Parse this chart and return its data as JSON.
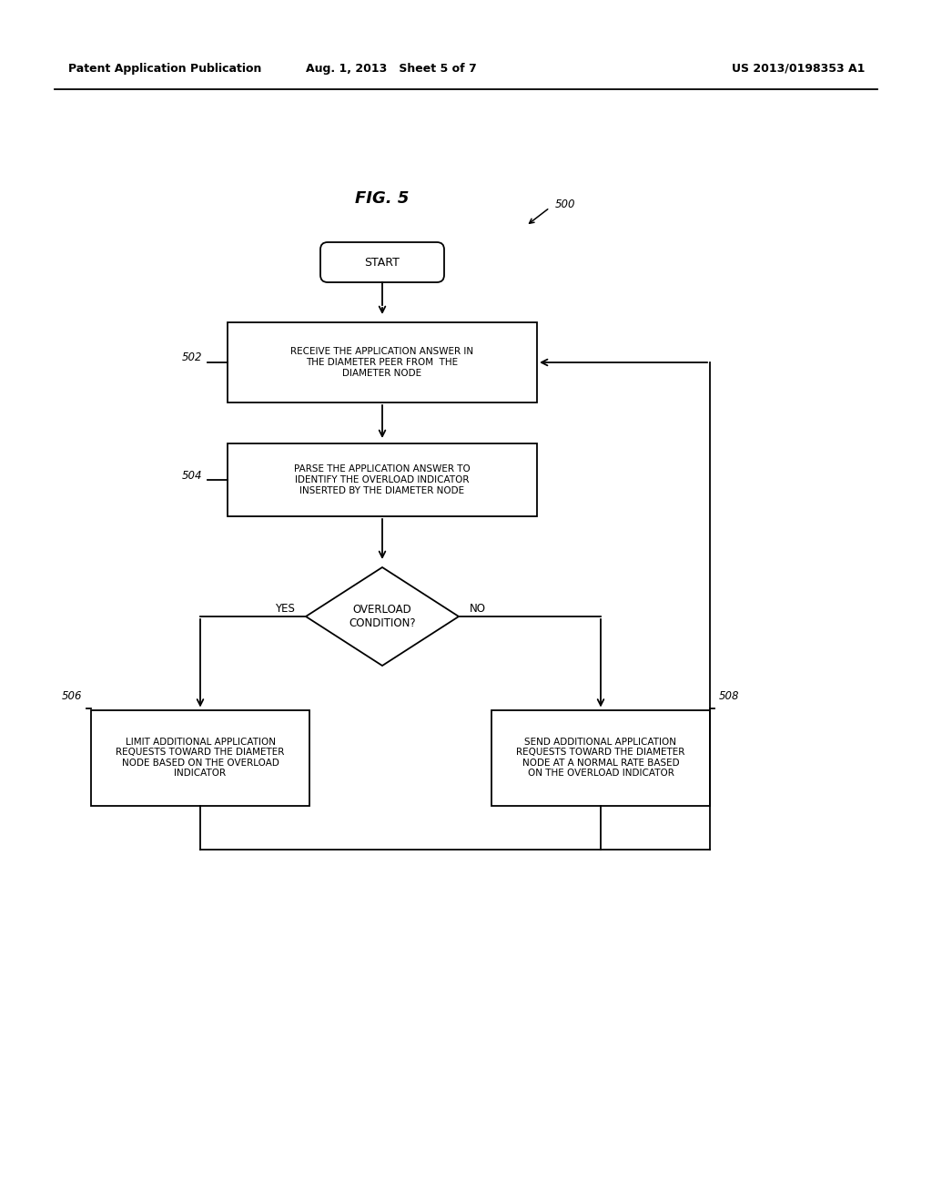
{
  "title": "FIG. 5",
  "patent_header_left": "Patent Application Publication",
  "patent_header_mid": "Aug. 1, 2013   Sheet 5 of 7",
  "patent_header_right": "US 2013/0198353 A1",
  "bg_color": "#ffffff",
  "nodes": {
    "start": {
      "label": "START"
    },
    "box502": {
      "label": "RECEIVE THE APPLICATION ANSWER IN\nTHE DIAMETER PEER FROM  THE\nDIAMETER NODE",
      "ref": "502"
    },
    "box504": {
      "label": "PARSE THE APPLICATION ANSWER TO\nIDENTIFY THE OVERLOAD INDICATOR\nINSERTED BY THE DIAMETER NODE",
      "ref": "504"
    },
    "diamond": {
      "label": "OVERLOAD\nCONDITION?"
    },
    "box506": {
      "label": "LIMIT ADDITIONAL APPLICATION\nREQUESTS TOWARD THE DIAMETER\nNODE BASED ON THE OVERLOAD\nINDICATOR",
      "ref": "506"
    },
    "box508": {
      "label": "SEND ADDITIONAL APPLICATION\nREQUESTS TOWARD THE DIAMETER\nNODE AT A NORMAL RATE BASED\nON THE OVERLOAD INDICATOR",
      "ref": "508"
    }
  },
  "yes_label": "YES",
  "no_label": "NO",
  "ref500": "500",
  "lw": 1.3,
  "font_size_box": 7.5,
  "font_size_header": 9.0,
  "font_size_title": 13,
  "font_size_ref": 8.5,
  "font_size_start": 9.0,
  "font_size_diamond": 8.5,
  "font_size_yn": 8.5
}
